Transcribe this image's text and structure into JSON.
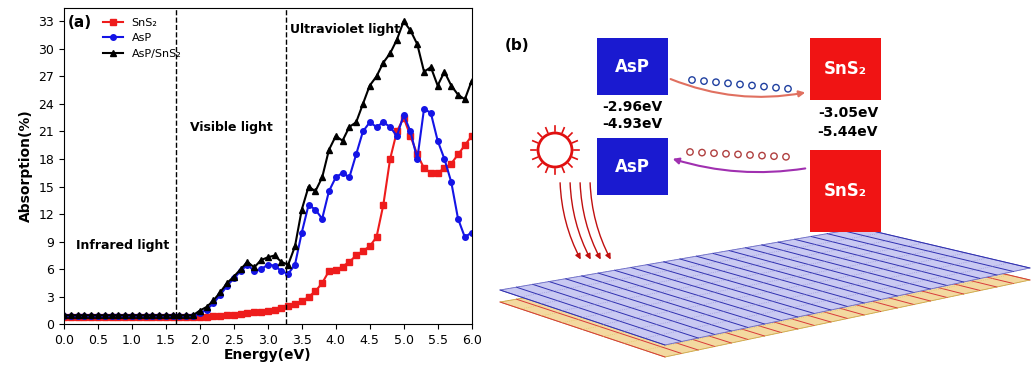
{
  "chart_data": {
    "type": "line",
    "title": "(a)",
    "x_label": "Energy(eV)",
    "y_label": "Absorption(%)",
    "xlim": [
      0.0,
      6.0
    ],
    "xticks": [
      0.0,
      0.5,
      1.0,
      1.5,
      2.0,
      2.5,
      3.0,
      3.5,
      4.0,
      4.5,
      5.0,
      5.5,
      6.0
    ],
    "ylim": [
      0,
      34.5
    ],
    "yticks": [
      0,
      3,
      6,
      9,
      12,
      15,
      18,
      21,
      24,
      27,
      30,
      33
    ],
    "legend": "upper left",
    "region_boundaries": [
      1.65,
      3.27
    ],
    "region_labels": [
      "Infrared light",
      "Visible light",
      "Ultraviolet light"
    ],
    "x": [
      0.0,
      0.1,
      0.2,
      0.3,
      0.4,
      0.5,
      0.6,
      0.7,
      0.8,
      0.9,
      1.0,
      1.1,
      1.2,
      1.3,
      1.4,
      1.5,
      1.6,
      1.7,
      1.8,
      1.9,
      2.0,
      2.1,
      2.2,
      2.3,
      2.4,
      2.5,
      2.6,
      2.7,
      2.8,
      2.9,
      3.0,
      3.1,
      3.2,
      3.3,
      3.4,
      3.5,
      3.6,
      3.7,
      3.8,
      3.9,
      4.0,
      4.1,
      4.2,
      4.3,
      4.4,
      4.5,
      4.6,
      4.7,
      4.8,
      4.9,
      5.0,
      5.1,
      5.2,
      5.3,
      5.4,
      5.5,
      5.6,
      5.7,
      5.8,
      5.9,
      6.0
    ],
    "series": [
      {
        "name": "SnS₂",
        "color": "#ee1c1c",
        "marker": "square",
        "values": [
          0.8,
          0.8,
          0.8,
          0.8,
          0.8,
          0.8,
          0.8,
          0.8,
          0.8,
          0.8,
          0.8,
          0.8,
          0.8,
          0.8,
          0.8,
          0.8,
          0.8,
          0.8,
          0.8,
          0.8,
          0.8,
          0.85,
          0.9,
          0.95,
          1.0,
          1.05,
          1.1,
          1.2,
          1.3,
          1.4,
          1.5,
          1.6,
          1.8,
          2.0,
          2.2,
          2.5,
          3.0,
          3.6,
          4.5,
          5.8,
          5.9,
          6.3,
          6.8,
          7.5,
          8.0,
          8.5,
          9.5,
          13,
          18,
          21,
          22.5,
          20.5,
          18.5,
          17,
          16.5,
          16.5,
          17,
          17.5,
          18.5,
          19.5,
          20.5
        ]
      },
      {
        "name": "AsP",
        "color": "#1414e6",
        "marker": "circle",
        "values": [
          0.9,
          0.9,
          0.9,
          0.9,
          0.9,
          0.9,
          0.9,
          0.9,
          0.9,
          0.9,
          0.9,
          0.9,
          0.9,
          0.9,
          0.9,
          0.9,
          0.9,
          0.9,
          0.9,
          0.9,
          1.2,
          1.6,
          2.3,
          3.2,
          4.2,
          5.0,
          5.8,
          6.5,
          5.8,
          6.0,
          6.5,
          6.4,
          5.8,
          5.5,
          6.5,
          10,
          13,
          12.5,
          11.5,
          14.5,
          16,
          16.5,
          16,
          18.5,
          21,
          22,
          21.5,
          22,
          21.5,
          20.5,
          22.8,
          21,
          18,
          23.5,
          23,
          20,
          18,
          15.5,
          11.5,
          9.5,
          10
        ]
      },
      {
        "name": "AsP/SnS₂",
        "color": "#000000",
        "marker": "triangle",
        "values": [
          1.0,
          1.0,
          1.0,
          1.0,
          1.0,
          1.0,
          1.0,
          1.0,
          1.0,
          1.0,
          1.0,
          1.0,
          1.0,
          1.0,
          1.0,
          1.0,
          1.0,
          1.0,
          1.0,
          1.0,
          1.5,
          1.9,
          2.6,
          3.5,
          4.5,
          5.2,
          6.0,
          6.8,
          6.2,
          7.0,
          7.3,
          7.5,
          6.8,
          6.5,
          8.5,
          12.5,
          15,
          14.5,
          16,
          19,
          20.5,
          20,
          21.5,
          22,
          24,
          26,
          27,
          28.5,
          29.5,
          31,
          33,
          32,
          30.5,
          27.5,
          28,
          26,
          27.5,
          26,
          25,
          24.5,
          26.5
        ]
      }
    ]
  },
  "diagram": {
    "label": "(b)",
    "bands": [
      {
        "material": "AsP",
        "color": "#1a1ad0",
        "cbm": "-2.96eV",
        "vbm": "-4.93eV"
      },
      {
        "material": "SnS₂",
        "color": "#f01414",
        "cbm": "-3.05eV",
        "vbm": "-5.44eV"
      }
    ]
  }
}
